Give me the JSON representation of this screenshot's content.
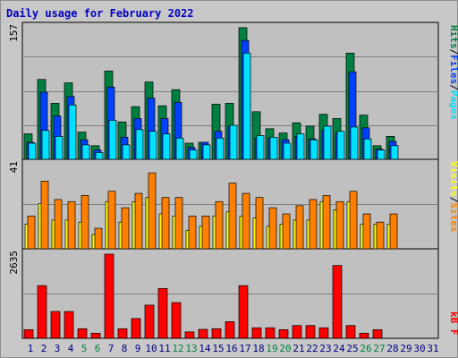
{
  "title": "Daily usage for February 2022",
  "colors": {
    "hits": "#008040",
    "files": "#0040ff",
    "pages": "#00e0ff",
    "visits": "#ffff00",
    "sites": "#ff8000",
    "kbytes": "#ff0000",
    "weekend_label": "#008040",
    "weekday_label": "#000080"
  },
  "days": [
    "1",
    "2",
    "3",
    "4",
    "5",
    "6",
    "7",
    "8",
    "9",
    "10",
    "11",
    "12",
    "13",
    "14",
    "15",
    "16",
    "17",
    "18",
    "19",
    "20",
    "21",
    "22",
    "23",
    "24",
    "25",
    "26",
    "27",
    "28",
    "29",
    "30",
    "31"
  ],
  "weekend_days": [
    "5",
    "6",
    "12",
    "13",
    "19",
    "20",
    "26",
    "27"
  ],
  "chart_data": [
    {
      "type": "bar",
      "name": "hits-files-pages",
      "ymax_label": "157",
      "ylim": [
        0,
        157
      ],
      "legend": [
        "Pages",
        "/",
        "Files",
        "/",
        "Hits"
      ],
      "series": [
        {
          "name": "Hits",
          "values": [
            30,
            94,
            66,
            90,
            32,
            16,
            104,
            44,
            62,
            91,
            63,
            82,
            19,
            20,
            65,
            66,
            155,
            56,
            36,
            31,
            43,
            39,
            53,
            48,
            125,
            52,
            16,
            27,
            0,
            0,
            0
          ]
        },
        {
          "name": "Files",
          "values": [
            20,
            79,
            51,
            74,
            23,
            11,
            85,
            26,
            48,
            72,
            48,
            67,
            14,
            20,
            33,
            39,
            140,
            25,
            25,
            23,
            27,
            24,
            34,
            31,
            103,
            37,
            12,
            21,
            0,
            0,
            0
          ]
        },
        {
          "name": "Pages",
          "values": [
            19,
            34,
            27,
            64,
            17,
            8,
            46,
            17,
            35,
            33,
            30,
            25,
            11,
            17,
            25,
            40,
            125,
            28,
            26,
            19,
            30,
            23,
            39,
            33,
            38,
            24,
            11,
            16,
            0,
            0,
            0
          ]
        }
      ]
    },
    {
      "type": "bar",
      "name": "visits-sites",
      "ymax_label": "41",
      "ylim": [
        0,
        41
      ],
      "legend": [
        "Sites",
        "/",
        "Visits"
      ],
      "series": [
        {
          "name": "Visits",
          "values": [
            12,
            22,
            14,
            14,
            13,
            7,
            23,
            13,
            23,
            25,
            17,
            16,
            9,
            11,
            16,
            18,
            16,
            15,
            11,
            12,
            14,
            14,
            23,
            19,
            23,
            12,
            12,
            12,
            0,
            0,
            0
          ]
        },
        {
          "name": "Sites",
          "values": [
            16,
            33,
            24,
            23,
            26,
            10,
            28,
            20,
            27,
            37,
            25,
            25,
            16,
            16,
            23,
            32,
            27,
            25,
            20,
            17,
            21,
            24,
            26,
            23,
            28,
            17,
            13,
            17,
            0,
            0,
            0
          ]
        }
      ]
    },
    {
      "type": "bar",
      "name": "kbytes",
      "ymax_label": "2635",
      "ylim": [
        0,
        2635
      ],
      "legend": [
        "kB F"
      ],
      "series": [
        {
          "name": "kB F",
          "values": [
            270,
            1650,
            840,
            840,
            300,
            160,
            2635,
            300,
            620,
            1040,
            1560,
            1120,
            200,
            280,
            300,
            520,
            1650,
            330,
            330,
            270,
            400,
            400,
            330,
            2280,
            400,
            160,
            270,
            0,
            0,
            0,
            0
          ]
        }
      ]
    }
  ]
}
